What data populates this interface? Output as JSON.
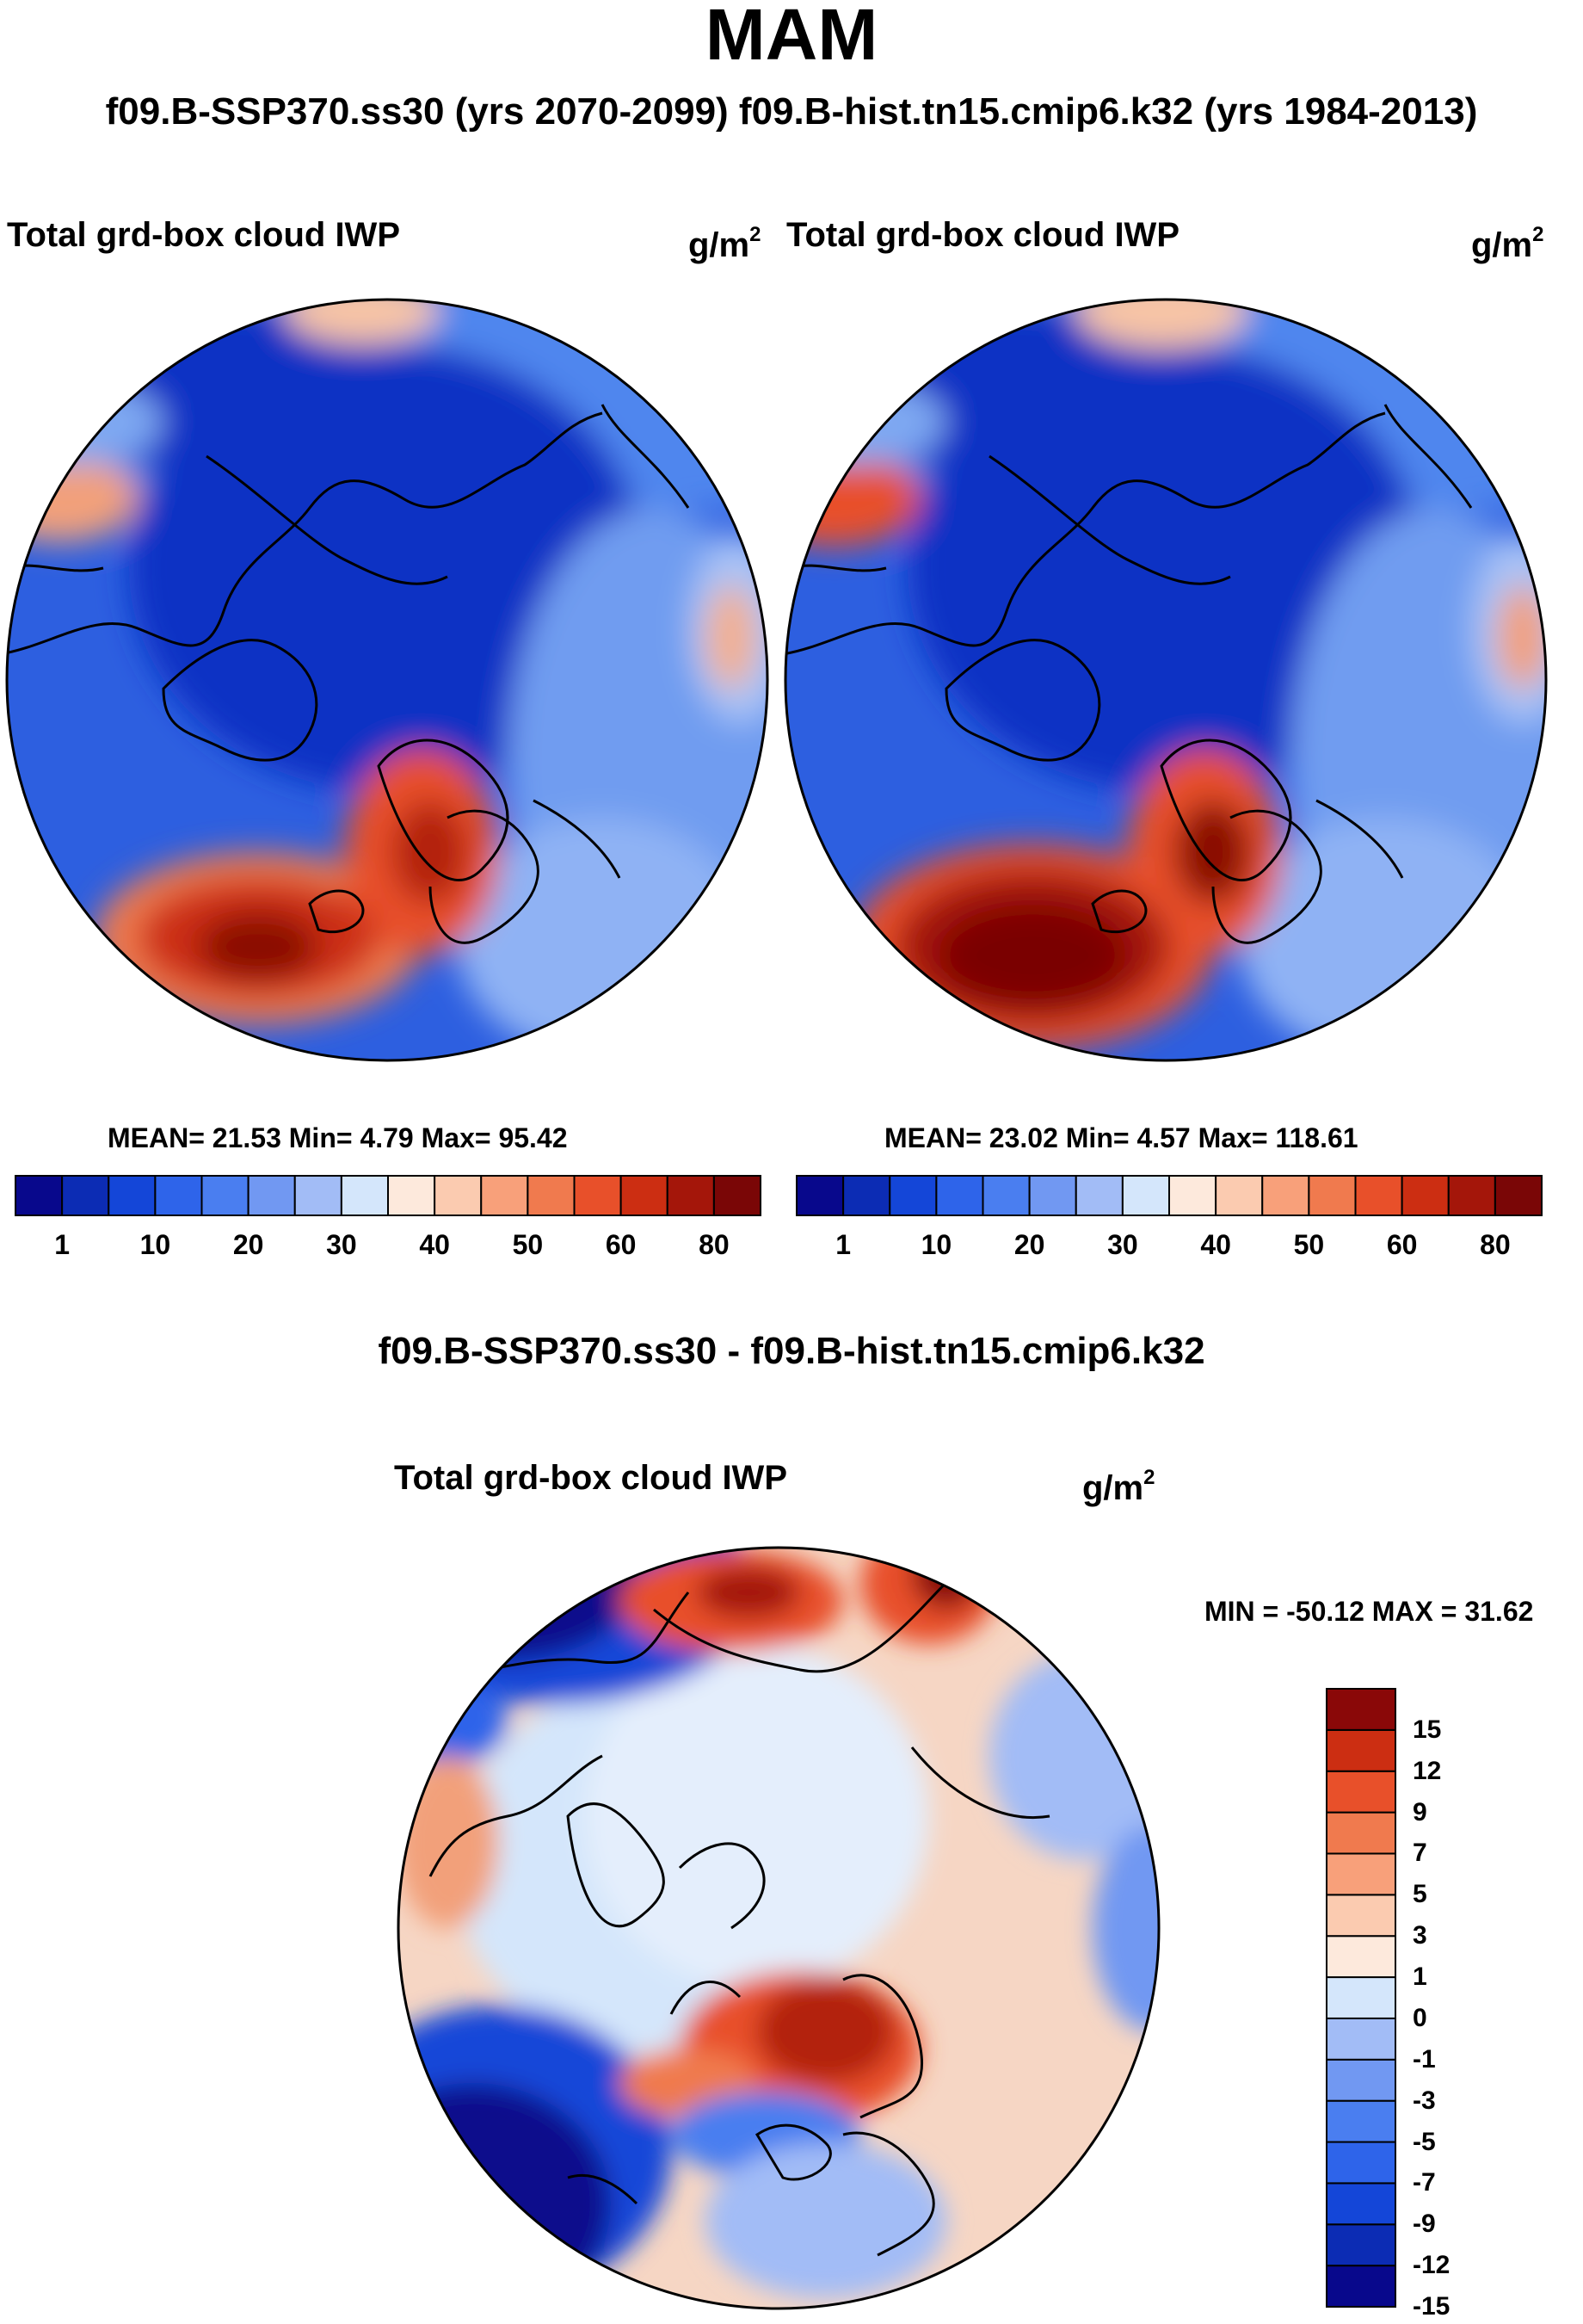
{
  "page": {
    "title": "MAM",
    "case_header": "f09.B-SSP370.ss30 (yrs 2070-2099)  f09.B-hist.tn15.cmip6.k32 (yrs 1984-2013)"
  },
  "panels": [
    {
      "variable": "Total grd-box cloud IWP",
      "units": "g/m",
      "units_exp": "2",
      "stats_text": "MEAN=  21.53  Min=    4.79  Max=  95.42",
      "mean": 21.53,
      "min": 4.79,
      "max": 95.42
    },
    {
      "variable": "Total grd-box cloud IWP",
      "units": "g/m",
      "units_exp": "2",
      "stats_text": "MEAN=  23.02  Min=    4.57  Max= 118.61",
      "mean": 23.02,
      "min": 4.57,
      "max": 118.61
    }
  ],
  "difference": {
    "title": "f09.B-SSP370.ss30 - f09.B-hist.tn15.cmip6.k32",
    "variable": "Total grd-box cloud IWP",
    "units": "g/m",
    "units_exp": "2",
    "minmax_text": "MIN = -50.12 MAX =  31.62",
    "min": -50.12,
    "max": 31.62
  },
  "colorbar_main": {
    "colors": [
      "#08088c",
      "#0c2cb4",
      "#1446d8",
      "#2e64ea",
      "#4a7ef0",
      "#7198f2",
      "#a2bcf6",
      "#d4e6fb",
      "#fde9dc",
      "#fbcbb0",
      "#f8a07a",
      "#f07a4e",
      "#e8502a",
      "#cc2e12",
      "#a4160a",
      "#7a0606"
    ],
    "labels": [
      "1",
      "10",
      "20",
      "30",
      "40",
      "50",
      "60",
      "80"
    ]
  },
  "colorbar_diff": {
    "colors": [
      "#08088c",
      "#0c2cb4",
      "#1446d8",
      "#2e64ea",
      "#4a7ef0",
      "#7198f2",
      "#a2bcf6",
      "#d4e6fb",
      "#fde9dc",
      "#fbcbb0",
      "#f8a07a",
      "#f07a4e",
      "#e8502a",
      "#cc2e12",
      "#8a0808"
    ],
    "labels": [
      "15",
      "12",
      "9",
      "7",
      "5",
      "3",
      "1",
      "0",
      "-1",
      "-3",
      "-5",
      "-7",
      "-9",
      "-12",
      "-15"
    ]
  },
  "map_colors": {
    "deep": "#1032c4",
    "mid": "#2d5fe0",
    "light": "#4f86ee",
    "pale": "#8fb2f4",
    "warm": "#f2a07a",
    "hot": "#d8401a",
    "core": "#a01a0a",
    "diff_base": "#f6d6c4",
    "diff_cool": "#d4e6fb",
    "diff_blue": "#1846d8",
    "diff_navy": "#08088c",
    "diff_red": "#d03a18"
  }
}
